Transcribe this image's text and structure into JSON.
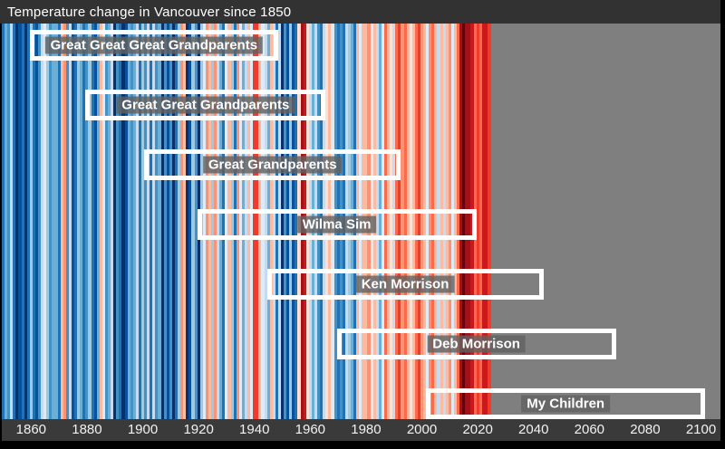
{
  "title": "Temperature change in Vancouver since 1850",
  "colors": {
    "frame_bg": "#000000",
    "title_bar_bg": "#323232",
    "title_text": "#ffffff",
    "axis_bar_bg": "#3a3a3a",
    "axis_text": "#f2f2f2",
    "future_bg": "#7f7f7f",
    "box_border": "#ffffff",
    "label_bg": "rgba(98,98,98,0.82)",
    "label_text": "#ffffff"
  },
  "chart_data": {
    "type": "heatmap",
    "subtype": "warming-stripes",
    "title": "Temperature change in Vancouver since 1850",
    "x_start_year": 1850,
    "x_end_year_stripes": 2024,
    "x_axis_end_year": 2107,
    "grid": false,
    "legend": "none",
    "tick_years": [
      1860,
      1880,
      1900,
      1920,
      1940,
      1960,
      1980,
      2000,
      2020,
      2040,
      2060,
      2080,
      2100
    ],
    "palette": {
      "b8": "#08306b",
      "b7": "#08519c",
      "b6": "#2171b5",
      "b5": "#4292c6",
      "b4": "#6baed6",
      "b3": "#9ecae1",
      "b2": "#c6dbef",
      "b1": "#deebf7",
      "r1": "#fee0d2",
      "r2": "#fcbba1",
      "r3": "#fc9272",
      "r4": "#fb6a4a",
      "r5": "#ef3b2c",
      "r6": "#cb181d",
      "r7": "#a50f15",
      "r8": "#67000d"
    },
    "stripes": [
      "b6",
      "b4",
      "b5",
      "b2",
      "b6",
      "b8",
      "b7",
      "b6",
      "b8",
      "b6",
      "b3",
      "b6",
      "b7",
      "b5",
      "b2",
      "b1",
      "b3",
      "b5",
      "b4",
      "b4",
      "b6",
      "r2",
      "r3",
      "b5",
      "b2",
      "b7",
      "b6",
      "b3",
      "b4",
      "b6",
      "b5",
      "b3",
      "b6",
      "b7",
      "b4",
      "r2",
      "b1",
      "b5",
      "b4",
      "b2",
      "b8",
      "b5",
      "b6",
      "b8",
      "b7",
      "b4",
      "b5",
      "b4",
      "b2",
      "b6",
      "b3",
      "b5",
      "b2",
      "b6",
      "b2",
      "b5",
      "b4",
      "b8",
      "b5",
      "b7",
      "b5",
      "b8",
      "b6",
      "b3",
      "r3",
      "r2",
      "b8",
      "b7",
      "b3",
      "b5",
      "b8",
      "b3",
      "b1",
      "r3",
      "r2",
      "b3",
      "r3",
      "b2",
      "b4",
      "b6",
      "b1",
      "r2",
      "b3",
      "b6",
      "r3",
      "b1",
      "b4",
      "b2",
      "r2",
      "b1",
      "r5",
      "r5",
      "r2",
      "b1",
      "b2",
      "b4",
      "r2",
      "b2",
      "b6",
      "b2",
      "b8",
      "b5",
      "b7",
      "b3",
      "b7",
      "b6",
      "r1",
      "r7",
      "r6",
      "r1",
      "b2",
      "b4",
      "b2",
      "b5",
      "b6",
      "b2",
      "r1",
      "r2",
      "b1",
      "b5",
      "b6",
      "b5",
      "b6",
      "b2",
      "b3",
      "b4",
      "b6",
      "r2",
      "b1",
      "r2",
      "r2",
      "r3",
      "b1",
      "r2",
      "b2",
      "b4",
      "b1",
      "r4",
      "r2",
      "r1",
      "b2",
      "r4",
      "r5",
      "r3",
      "r4",
      "r2",
      "r1",
      "r2",
      "r4",
      "r5",
      "r3",
      "r2",
      "b1",
      "r3",
      "r4",
      "r2",
      "b2",
      "r2",
      "b2",
      "r2",
      "r3",
      "b1",
      "r2",
      "r4",
      "r7",
      "r8",
      "r7",
      "r7",
      "r6",
      "r4",
      "r5",
      "r4",
      "r6",
      "r6",
      "r5"
    ],
    "future_region": {
      "from_year": 2025,
      "color": "#7f7f7f"
    },
    "generations": [
      {
        "label": "Great Great Great Grandparents",
        "start_year": 1860,
        "end_year": 1949
      },
      {
        "label": "Great Great Grandparents",
        "start_year": 1880,
        "end_year": 1966
      },
      {
        "label": "Great Grandparents",
        "start_year": 1901,
        "end_year": 1993
      },
      {
        "label": "Wilma Sim",
        "start_year": 1920,
        "end_year": 2020
      },
      {
        "label": "Ken Morrison",
        "start_year": 1945,
        "end_year": 2044
      },
      {
        "label": "Deb Morrison",
        "start_year": 1970,
        "end_year": 2070
      },
      {
        "label": "My Children",
        "start_year": 2002,
        "end_year": 2102
      }
    ]
  }
}
